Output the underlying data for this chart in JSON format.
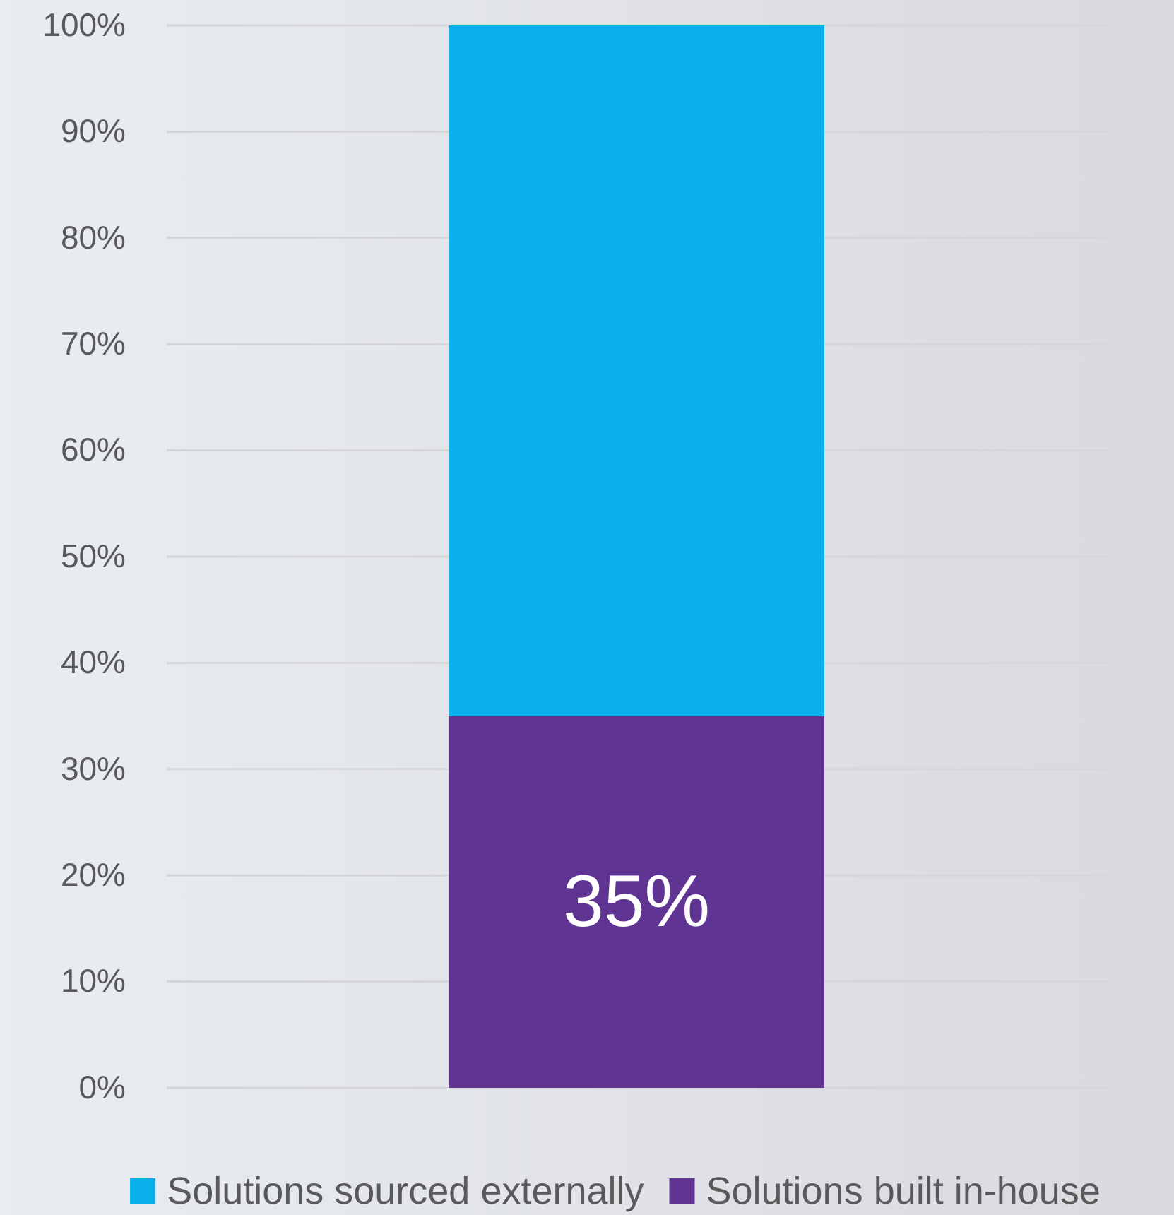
{
  "chart_data": {
    "type": "bar",
    "stacked": true,
    "categories": [
      null
    ],
    "series": [
      {
        "name": "Solutions built in-house",
        "color": "#5f3493",
        "values": [
          35
        ],
        "value_labels": [
          "35%"
        ]
      },
      {
        "name": "Solutions sourced externally",
        "color": "#09b0ec",
        "values": [
          65
        ],
        "value_labels": [
          null
        ]
      }
    ],
    "ylim": [
      0,
      100
    ],
    "yticks": [
      {
        "value": 0,
        "label": "0%"
      },
      {
        "value": 10,
        "label": "10%"
      },
      {
        "value": 20,
        "label": "20%"
      },
      {
        "value": 30,
        "label": "30%"
      },
      {
        "value": 40,
        "label": "40%"
      },
      {
        "value": 50,
        "label": "50%"
      },
      {
        "value": 60,
        "label": "60%"
      },
      {
        "value": 70,
        "label": "70%"
      },
      {
        "value": 80,
        "label": "80%"
      },
      {
        "value": 90,
        "label": "90%"
      },
      {
        "value": 100,
        "label": "100%"
      }
    ],
    "grid": "y",
    "legend": "bottom"
  }
}
